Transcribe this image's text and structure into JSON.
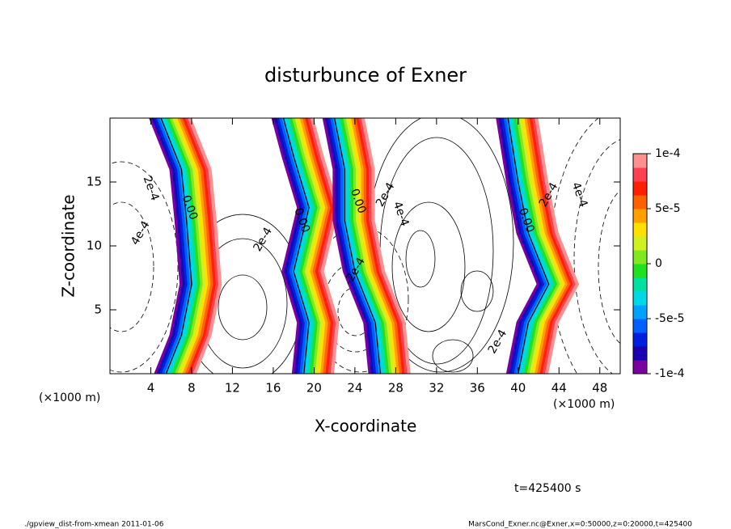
{
  "chart_data": {
    "type": "contour",
    "title": "disturbunce of Exner",
    "x_label": "X-coordinate",
    "y_label": "Z-coordinate",
    "x_unit": "(×1000 m)",
    "x_unit_right": "(×1000 m)",
    "xlim": [
      0,
      50
    ],
    "xticks": [
      4,
      8,
      12,
      16,
      20,
      24,
      28,
      32,
      36,
      40,
      44,
      48
    ],
    "ylim": [
      0,
      20
    ],
    "yticks": [
      5,
      10,
      15
    ],
    "colorbar": {
      "lim": [
        -0.0001,
        0.0001
      ],
      "ticks": [
        {
          "value": 0.0001,
          "label": "1e-4"
        },
        {
          "value": 5e-05,
          "label": "5e-5"
        },
        0,
        {
          "value": -5e-05,
          "label": "-5e-5"
        },
        {
          "value": -0.0001,
          "label": "-1e-4"
        }
      ],
      "colors": [
        "#7a00a0",
        "#1a00b0",
        "#0020e0",
        "#0060ff",
        "#00a0ff",
        "#00d8e8",
        "#00e0a0",
        "#20e020",
        "#80e820",
        "#d0f020",
        "#ffe000",
        "#ffa000",
        "#ff6000",
        "#ff2000",
        "#ff4050",
        "#ff9090"
      ]
    },
    "contour_labels": [
      "2e-4",
      "4e-4",
      "0.00",
      "2e-4",
      "0.00",
      "-2e-4",
      "0.00",
      "2e-4",
      "4e-4",
      "2e-4",
      "0.00",
      "2e-4",
      "4e-4"
    ],
    "time_label": "t=425400 s",
    "footer_left": "./gpview_dist-from-xmean  2011-01-06",
    "footer_right": "MarsCond_Exner.nc@Exner,x=0:50000,z=0:20000,t=425400"
  }
}
